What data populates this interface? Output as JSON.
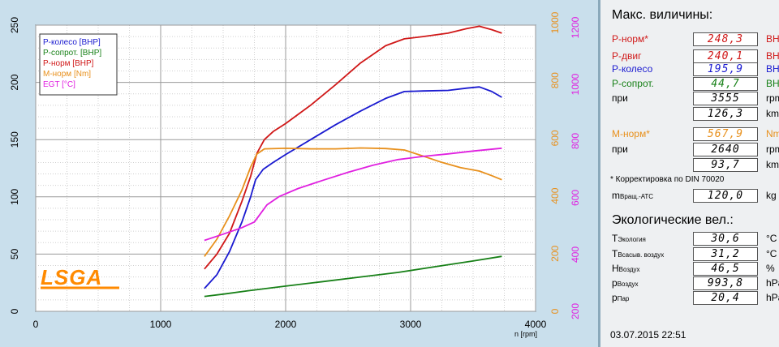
{
  "chart_data": {
    "type": "line",
    "xlabel": "n [rpm]",
    "xlim": [
      0,
      4000
    ],
    "x_ticks": [
      0,
      1000,
      2000,
      3000,
      4000
    ],
    "ylim_left": [
      0,
      250
    ],
    "y_ticks_left": [
      0,
      50,
      100,
      150,
      200,
      250
    ],
    "right_axes": [
      {
        "name": "torque",
        "color": "#e8901c",
        "ticks": [
          0,
          200,
          400,
          600,
          800,
          1000
        ]
      },
      {
        "name": "egt",
        "color": "#e020e0",
        "ticks": [
          200,
          400,
          600,
          800,
          1000,
          1200
        ]
      }
    ],
    "legend_position": "top-left",
    "legend": [
      {
        "label": "P-колесо [BHP]",
        "color": "#1a1ad0"
      },
      {
        "label": "P-сопрот. [BHP]",
        "color": "#178017"
      },
      {
        "label": "P-норм [BHP]",
        "color": "#d01818"
      },
      {
        "label": "M-норм [Nm]",
        "color": "#e8901c"
      },
      {
        "label": "EGT [°C]",
        "color": "#e020e0"
      }
    ],
    "series": [
      {
        "name": "P-колесо [BHP]",
        "color": "#1a1ad0",
        "axis": "left",
        "points": [
          [
            1350,
            20
          ],
          [
            1450,
            32
          ],
          [
            1550,
            52
          ],
          [
            1650,
            78
          ],
          [
            1720,
            100
          ],
          [
            1760,
            115
          ],
          [
            1820,
            124
          ],
          [
            1900,
            130
          ],
          [
            2000,
            137
          ],
          [
            2200,
            150
          ],
          [
            2400,
            163
          ],
          [
            2600,
            175
          ],
          [
            2800,
            186
          ],
          [
            2950,
            192
          ],
          [
            3100,
            192.5
          ],
          [
            3300,
            193
          ],
          [
            3450,
            195
          ],
          [
            3550,
            196
          ],
          [
            3650,
            192
          ],
          [
            3730,
            187
          ]
        ]
      },
      {
        "name": "P-сопрот. [BHP]",
        "color": "#178017",
        "axis": "left",
        "points": [
          [
            1350,
            13
          ],
          [
            1500,
            15
          ],
          [
            1700,
            18
          ],
          [
            2000,
            22
          ],
          [
            2300,
            26
          ],
          [
            2600,
            30
          ],
          [
            2900,
            34
          ],
          [
            3200,
            39
          ],
          [
            3500,
            44
          ],
          [
            3730,
            48
          ]
        ]
      },
      {
        "name": "P-норм [BHP]",
        "color": "#d01818",
        "axis": "left",
        "points": [
          [
            1350,
            37
          ],
          [
            1450,
            50
          ],
          [
            1550,
            68
          ],
          [
            1650,
            96
          ],
          [
            1720,
            118
          ],
          [
            1770,
            138
          ],
          [
            1830,
            150
          ],
          [
            1900,
            157
          ],
          [
            2000,
            164
          ],
          [
            2200,
            180
          ],
          [
            2400,
            198
          ],
          [
            2600,
            217
          ],
          [
            2800,
            232
          ],
          [
            2950,
            238
          ],
          [
            3100,
            240
          ],
          [
            3300,
            243
          ],
          [
            3450,
            247
          ],
          [
            3550,
            249
          ],
          [
            3650,
            246
          ],
          [
            3730,
            243
          ]
        ]
      },
      {
        "name": "M-норм [Nm]",
        "color": "#e8901c",
        "axis": "torque",
        "points": [
          [
            1350,
            190
          ],
          [
            1450,
            250
          ],
          [
            1550,
            330
          ],
          [
            1650,
            420
          ],
          [
            1720,
            500
          ],
          [
            1770,
            545
          ],
          [
            1830,
            563
          ],
          [
            2000,
            565
          ],
          [
            2200,
            563
          ],
          [
            2400,
            563
          ],
          [
            2600,
            566
          ],
          [
            2800,
            564
          ],
          [
            2950,
            559
          ],
          [
            3100,
            538
          ],
          [
            3250,
            516
          ],
          [
            3400,
            498
          ],
          [
            3550,
            486
          ],
          [
            3650,
            470
          ],
          [
            3730,
            456
          ]
        ]
      },
      {
        "name": "EGT [°C]",
        "color": "#e020e0",
        "axis": "egt",
        "points": [
          [
            1350,
            450
          ],
          [
            1500,
            472
          ],
          [
            1650,
            495
          ],
          [
            1750,
            515
          ],
          [
            1800,
            545
          ],
          [
            1850,
            575
          ],
          [
            1950,
            605
          ],
          [
            2100,
            633
          ],
          [
            2300,
            662
          ],
          [
            2500,
            690
          ],
          [
            2700,
            715
          ],
          [
            2900,
            735
          ],
          [
            3100,
            746
          ],
          [
            3300,
            755
          ],
          [
            3500,
            765
          ],
          [
            3730,
            775
          ]
        ]
      }
    ]
  },
  "panel": {
    "max_title": "Макс. виличины:",
    "rows": [
      {
        "label": "P-норм*",
        "value": "248,3",
        "unit": "BHP",
        "color": "#d01818"
      },
      {
        "label": "P-двиг",
        "value": "240,1",
        "unit": "BHP",
        "color": "#d01818"
      },
      {
        "label": "P-колесо",
        "value": "195,9",
        "unit": "BHP",
        "color": "#1a1ad0"
      },
      {
        "label": "P-сопрот.",
        "value": "44,7",
        "unit": "BHP",
        "color": "#178017"
      },
      {
        "label": "при",
        "value": "3555",
        "unit": "rpm",
        "color": "#000000"
      },
      {
        "label": "",
        "value": "126,3",
        "unit": "km/h",
        "color": "#000000"
      },
      {
        "label": "M-норм*",
        "value": "567,9",
        "unit": "Nm",
        "color": "#e8901c"
      },
      {
        "label": "при",
        "value": "2640",
        "unit": "rpm",
        "color": "#000000"
      },
      {
        "label": "",
        "value": "93,7",
        "unit": "km/h",
        "color": "#000000"
      }
    ],
    "note": "* Корректировка по DIN 70020",
    "mass": {
      "label": "m",
      "sub": "Вращ.-АТС",
      "value": "120,0",
      "unit": "kg"
    },
    "eco_title": "Экологические вел.:",
    "eco_rows": [
      {
        "label": "T",
        "sub": "Экология",
        "value": "30,6",
        "unit": "°C"
      },
      {
        "label": "T",
        "sub": "Всасыв. воздух",
        "value": "31,2",
        "unit": "°C"
      },
      {
        "label": "H",
        "sub": "Воздух",
        "value": "46,5",
        "unit": "%"
      },
      {
        "label": "p",
        "sub": "Воздух",
        "value": "993,8",
        "unit": "hPa"
      },
      {
        "label": "p",
        "sub": "Пар",
        "value": "20,4",
        "unit": "hPa"
      }
    ],
    "datetime": "03.07.2015  22:51"
  },
  "logo": "LSGA"
}
